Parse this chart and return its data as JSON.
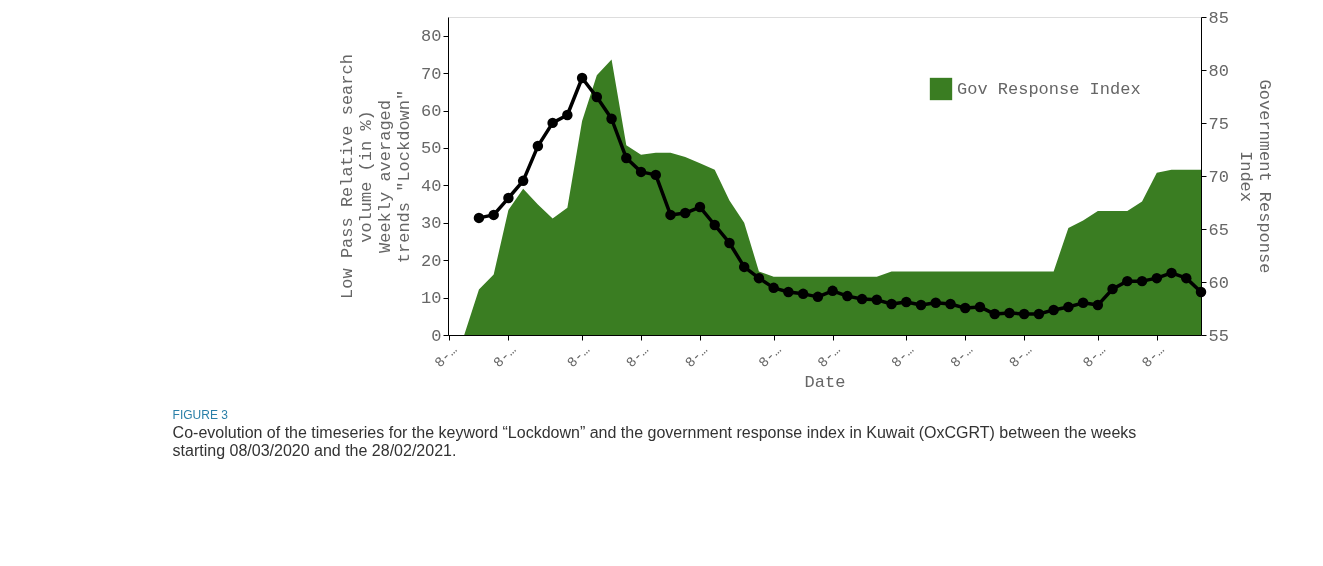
{
  "chart_data": {
    "type": "line",
    "title": "FIGURE 3",
    "annotations": [
      "Co-evolution of the timeseries for the keyword “Lockdown” and the government response index in Kuwait (OxCGRT) between the weeks starting 08/03/2020 and the 28/02/2021."
    ],
    "xlabel": "Date",
    "ylabel": "Low Pass Relative search\nvolume  (in %)\nWeekly averaged\ntrends \"Lockdown\"",
    "y2label": "Government Response\nIndex",
    "categories": [
      "8-…",
      null,
      null,
      null,
      "8-…",
      null,
      null,
      null,
      null,
      "8-…",
      null,
      null,
      null,
      "8-…",
      null,
      null,
      null,
      "8-…",
      null,
      null,
      null,
      null,
      "8-…",
      null,
      null,
      null,
      "8-…",
      null,
      null,
      null,
      null,
      "8-…",
      null,
      null,
      null,
      "8-…",
      null,
      null,
      null,
      "8-…",
      null,
      null,
      null,
      null,
      "8-…",
      null,
      null,
      null,
      "8-…",
      null,
      null,
      null
    ],
    "ylim": [
      0,
      85
    ],
    "yticks": [
      0,
      10,
      20,
      30,
      40,
      50,
      60,
      70,
      80
    ],
    "y2lim": [
      55,
      85
    ],
    "y2ticks": [
      55,
      60,
      65,
      70,
      75,
      80,
      85
    ],
    "grid": false,
    "legend": "top right",
    "line_style": "solid",
    "series": [
      {
        "name": "Gov Response Index",
        "type": "area",
        "axis": "y2",
        "color": "#3a7d22",
        "values": [
          null,
          55,
          59.3,
          60.7,
          66.8,
          68.8,
          67.3,
          66.0,
          67.0,
          75.2,
          79.5,
          81.0,
          72.9,
          72.0,
          72.2,
          72.2,
          71.8,
          71.2,
          70.6,
          67.7,
          65.6,
          61.0,
          60.5,
          60.5,
          60.5,
          60.5,
          60.5,
          60.5,
          60.5,
          60.5,
          61.0,
          61.0,
          61.0,
          61.0,
          61.0,
          61.0,
          61.0,
          61.0,
          61.0,
          61.0,
          61.0,
          61.0,
          65.1,
          65.8,
          66.7,
          66.7,
          66.7,
          67.6,
          70.3,
          70.6,
          70.6,
          70.6
        ]
      },
      {
        "type": "line",
        "marker": "circle",
        "color": "#000000",
        "values": [
          null,
          null,
          31.3,
          32.1,
          36.6,
          41.2,
          50.5,
          56.7,
          58.8,
          68.7,
          63.6,
          57.8,
          47.3,
          43.6,
          42.8,
          32.1,
          32.6,
          34.2,
          29.4,
          24.6,
          18.2,
          15.2,
          12.6,
          11.5,
          11.0,
          10.2,
          11.8,
          10.4,
          9.6,
          9.4,
          8.3,
          8.8,
          8.0,
          8.6,
          8.3,
          7.2,
          7.5,
          5.6,
          5.9,
          5.6,
          5.6,
          6.7,
          7.5,
          8.6,
          8.0,
          12.3,
          14.4,
          14.4,
          15.2,
          16.6,
          15.2,
          11.5
        ]
      }
    ]
  }
}
